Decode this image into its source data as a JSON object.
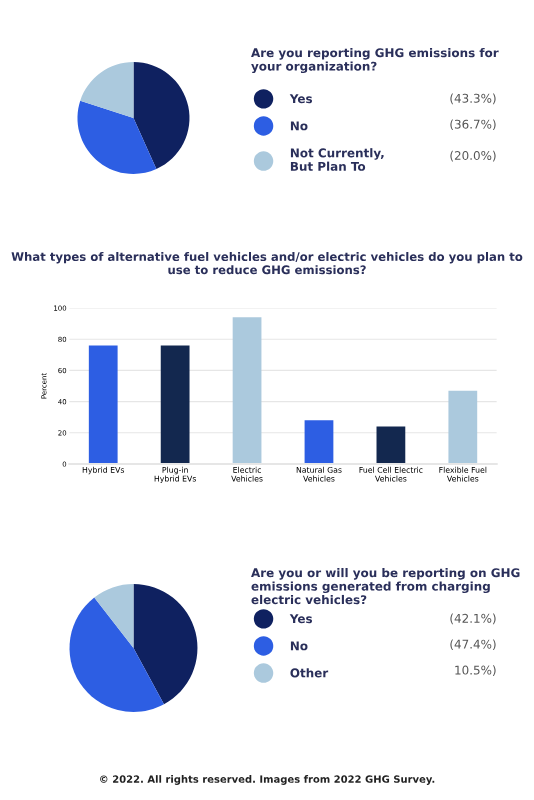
{
  "chart_data": [
    {
      "type": "pie",
      "title": "Are you reporting GHG emissions for your organization?",
      "categories": [
        "Yes",
        "No",
        "Not Currently,\nBut Plan To"
      ],
      "values": [
        43.3,
        36.7,
        20.0
      ],
      "value_labels": [
        "(43.3%)",
        "(36.7%)",
        "(20.0%)"
      ],
      "colors": [
        "#0f2160",
        "#2d5ee3",
        "#abc9dd"
      ],
      "legend": "right"
    },
    {
      "type": "bar",
      "title": "What types of alternative fuel vehicles and/or electric vehicles do you plan to use to reduce GHG emissions?",
      "ylabel": "Percent",
      "categories": [
        "Hybrid EVs",
        "Plug-in\nHybrid EVs",
        "Electric\nVehicles",
        "Natural Gas\nVehicles",
        "Fuel Cell Electric\nVehicles",
        "Flexible Fuel\nVehicles"
      ],
      "values": [
        76,
        76,
        94,
        28,
        24,
        47
      ],
      "colors": [
        "#2d5ee3",
        "#13284f",
        "#abc9dd",
        "#2d5ee3",
        "#13284f",
        "#abc9dd"
      ],
      "ylim": [
        0,
        100
      ],
      "yticks": [
        0,
        20,
        40,
        60,
        80,
        100
      ],
      "grid": "y"
    },
    {
      "type": "pie",
      "title": "Are you or will you be reporting on GHG emissions generated from charging electric vehicles?",
      "categories": [
        "Yes",
        "No",
        "Other"
      ],
      "values": [
        42.1,
        47.4,
        10.5
      ],
      "value_labels": [
        "(42.1%)",
        "(47.4%)",
        "10.5%)"
      ],
      "colors": [
        "#0f2160",
        "#2d5ee3",
        "#abc9dd"
      ],
      "legend": "right",
      "annotations": [
        "© 2022. All rights reserved. Images from 2022 GHG Survey."
      ]
    }
  ]
}
